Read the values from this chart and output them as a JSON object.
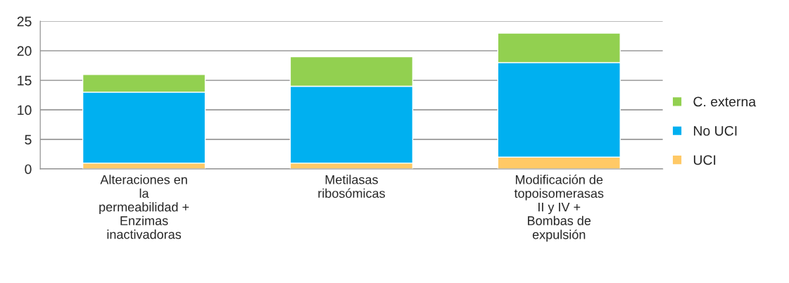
{
  "chart_data": {
    "type": "bar",
    "stacked": true,
    "categories": [
      "Alteraciones en\nla\npermeabilidad +\nEnzimas\ninactivadoras",
      "Metilasas\nribosómicas",
      "Modificación de\ntopoisomerasas\nII y IV +\nBombas de\nexpulsión"
    ],
    "series": [
      {
        "name": "UCI",
        "color": "#ffc966",
        "values": [
          1,
          1,
          2
        ]
      },
      {
        "name": "No UCI",
        "color": "#00b0f0",
        "values": [
          12,
          13,
          16
        ]
      },
      {
        "name": "C. externa",
        "color": "#92d050",
        "values": [
          3,
          5,
          5
        ]
      }
    ],
    "ylim": [
      0,
      25
    ],
    "yticks": [
      0,
      5,
      10,
      15,
      20,
      25
    ],
    "grid": "y",
    "legend": "right"
  }
}
